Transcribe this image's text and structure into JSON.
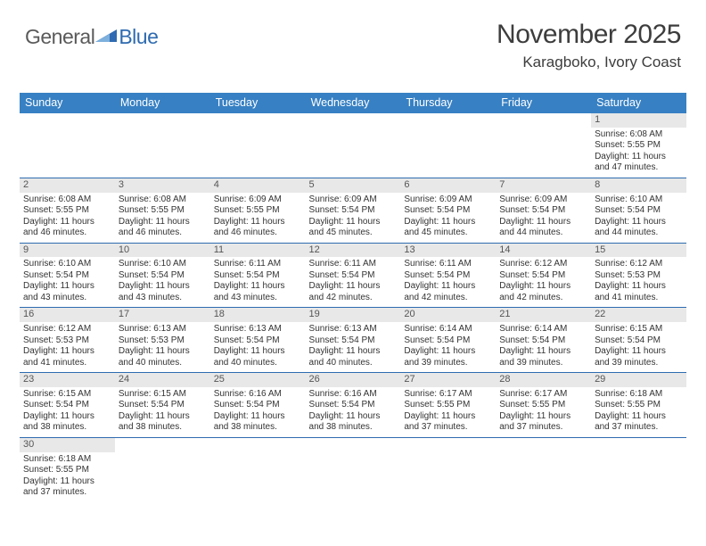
{
  "brand": {
    "part1": "General",
    "part2": "Blue"
  },
  "title": "November 2025",
  "location": "Karagboko, Ivory Coast",
  "day_names": [
    "Sunday",
    "Monday",
    "Tuesday",
    "Wednesday",
    "Thursday",
    "Friday",
    "Saturday"
  ],
  "colors": {
    "header_bg": "#3780c3",
    "header_text": "#ffffff",
    "border": "#2e6bb0",
    "date_bg": "#e8e8e8",
    "text": "#333333"
  },
  "first_weekday": 6,
  "days": [
    {
      "n": 1,
      "sr": "6:08 AM",
      "ss": "5:55 PM",
      "dl": "11 hours and 47 minutes."
    },
    {
      "n": 2,
      "sr": "6:08 AM",
      "ss": "5:55 PM",
      "dl": "11 hours and 46 minutes."
    },
    {
      "n": 3,
      "sr": "6:08 AM",
      "ss": "5:55 PM",
      "dl": "11 hours and 46 minutes."
    },
    {
      "n": 4,
      "sr": "6:09 AM",
      "ss": "5:55 PM",
      "dl": "11 hours and 46 minutes."
    },
    {
      "n": 5,
      "sr": "6:09 AM",
      "ss": "5:54 PM",
      "dl": "11 hours and 45 minutes."
    },
    {
      "n": 6,
      "sr": "6:09 AM",
      "ss": "5:54 PM",
      "dl": "11 hours and 45 minutes."
    },
    {
      "n": 7,
      "sr": "6:09 AM",
      "ss": "5:54 PM",
      "dl": "11 hours and 44 minutes."
    },
    {
      "n": 8,
      "sr": "6:10 AM",
      "ss": "5:54 PM",
      "dl": "11 hours and 44 minutes."
    },
    {
      "n": 9,
      "sr": "6:10 AM",
      "ss": "5:54 PM",
      "dl": "11 hours and 43 minutes."
    },
    {
      "n": 10,
      "sr": "6:10 AM",
      "ss": "5:54 PM",
      "dl": "11 hours and 43 minutes."
    },
    {
      "n": 11,
      "sr": "6:11 AM",
      "ss": "5:54 PM",
      "dl": "11 hours and 43 minutes."
    },
    {
      "n": 12,
      "sr": "6:11 AM",
      "ss": "5:54 PM",
      "dl": "11 hours and 42 minutes."
    },
    {
      "n": 13,
      "sr": "6:11 AM",
      "ss": "5:54 PM",
      "dl": "11 hours and 42 minutes."
    },
    {
      "n": 14,
      "sr": "6:12 AM",
      "ss": "5:54 PM",
      "dl": "11 hours and 42 minutes."
    },
    {
      "n": 15,
      "sr": "6:12 AM",
      "ss": "5:53 PM",
      "dl": "11 hours and 41 minutes."
    },
    {
      "n": 16,
      "sr": "6:12 AM",
      "ss": "5:53 PM",
      "dl": "11 hours and 41 minutes."
    },
    {
      "n": 17,
      "sr": "6:13 AM",
      "ss": "5:53 PM",
      "dl": "11 hours and 40 minutes."
    },
    {
      "n": 18,
      "sr": "6:13 AM",
      "ss": "5:54 PM",
      "dl": "11 hours and 40 minutes."
    },
    {
      "n": 19,
      "sr": "6:13 AM",
      "ss": "5:54 PM",
      "dl": "11 hours and 40 minutes."
    },
    {
      "n": 20,
      "sr": "6:14 AM",
      "ss": "5:54 PM",
      "dl": "11 hours and 39 minutes."
    },
    {
      "n": 21,
      "sr": "6:14 AM",
      "ss": "5:54 PM",
      "dl": "11 hours and 39 minutes."
    },
    {
      "n": 22,
      "sr": "6:15 AM",
      "ss": "5:54 PM",
      "dl": "11 hours and 39 minutes."
    },
    {
      "n": 23,
      "sr": "6:15 AM",
      "ss": "5:54 PM",
      "dl": "11 hours and 38 minutes."
    },
    {
      "n": 24,
      "sr": "6:15 AM",
      "ss": "5:54 PM",
      "dl": "11 hours and 38 minutes."
    },
    {
      "n": 25,
      "sr": "6:16 AM",
      "ss": "5:54 PM",
      "dl": "11 hours and 38 minutes."
    },
    {
      "n": 26,
      "sr": "6:16 AM",
      "ss": "5:54 PM",
      "dl": "11 hours and 38 minutes."
    },
    {
      "n": 27,
      "sr": "6:17 AM",
      "ss": "5:55 PM",
      "dl": "11 hours and 37 minutes."
    },
    {
      "n": 28,
      "sr": "6:17 AM",
      "ss": "5:55 PM",
      "dl": "11 hours and 37 minutes."
    },
    {
      "n": 29,
      "sr": "6:18 AM",
      "ss": "5:55 PM",
      "dl": "11 hours and 37 minutes."
    },
    {
      "n": 30,
      "sr": "6:18 AM",
      "ss": "5:55 PM",
      "dl": "11 hours and 37 minutes."
    }
  ],
  "labels": {
    "sunrise": "Sunrise: ",
    "sunset": "Sunset: ",
    "daylight": "Daylight: "
  }
}
